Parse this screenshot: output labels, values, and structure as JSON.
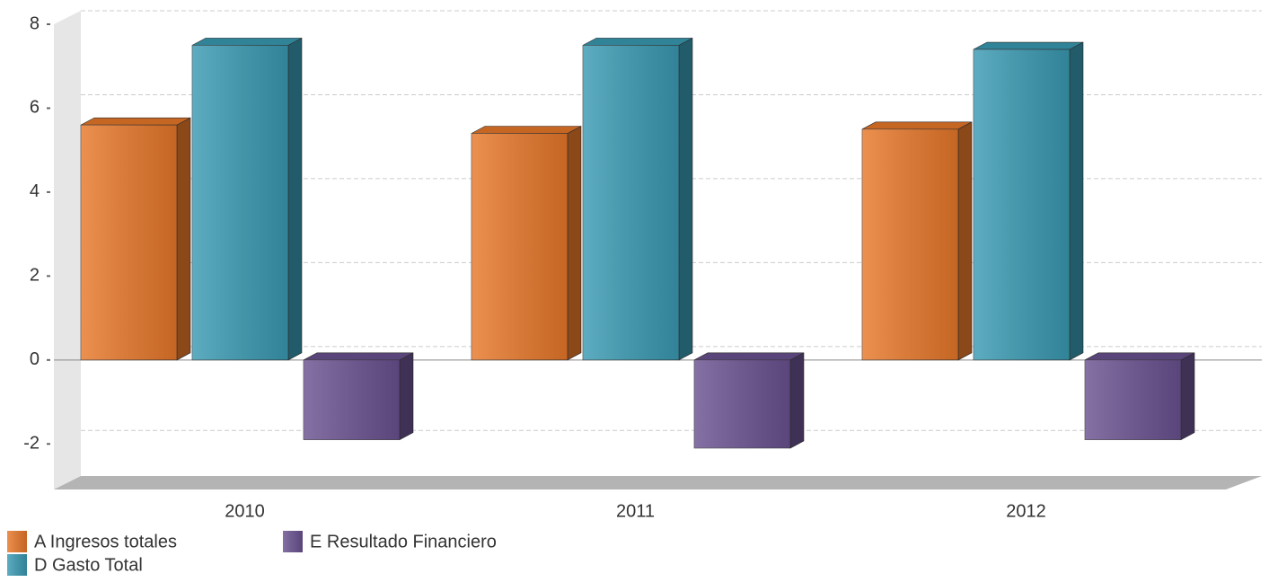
{
  "chart_data": {
    "type": "bar3d",
    "categories": [
      "2010",
      "2011",
      "2012"
    ],
    "series": [
      {
        "name": "A Ingresos totales",
        "color": "#e8782a",
        "values": [
          5.6,
          5.4,
          5.5
        ]
      },
      {
        "name": "D Gasto Total",
        "color": "#3a9ab3",
        "values": [
          7.5,
          7.5,
          7.4
        ]
      },
      {
        "name": "E Resultado Financiero",
        "color": "#6a5290",
        "values": [
          -1.9,
          -2.1,
          -1.9
        ]
      }
    ],
    "ylim": [
      -3,
      8
    ],
    "yticks": [
      -2,
      0,
      2,
      4,
      6,
      8
    ],
    "grid": true,
    "legend": "bottom"
  }
}
